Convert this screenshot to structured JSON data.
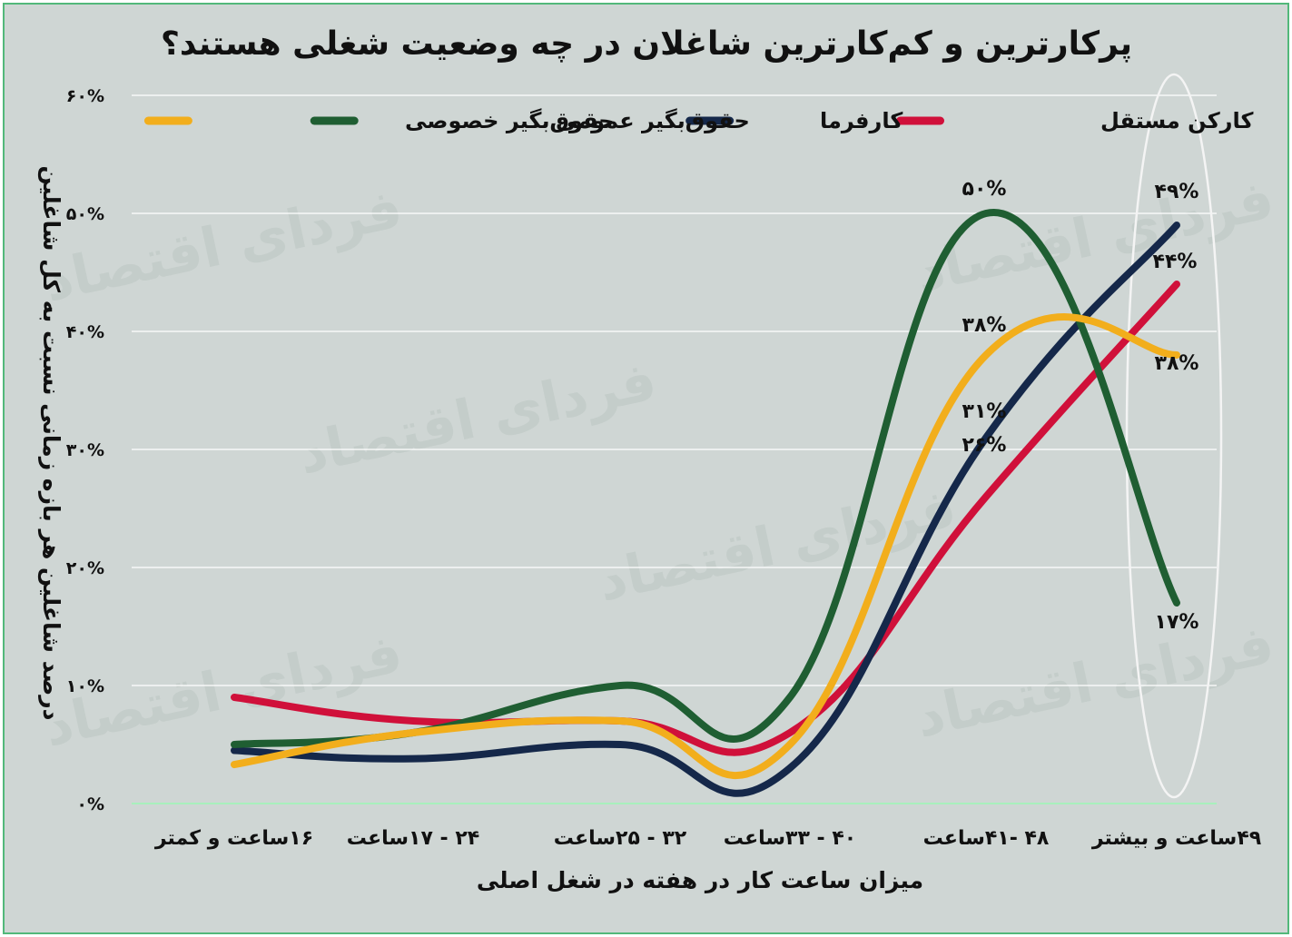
{
  "chart_data": {
    "type": "line",
    "title": "پرکارترین و کم‌کارترین شاغلان در چه وضعیت شغلی هستند؟",
    "xlabel": "میزان ساعت کار در هفته در شغل اصلی",
    "ylabel": "درصد شاغلین هر بازه زمانی نسبت به کل شاغلین",
    "categories": [
      "۱۶ساعت و کمتر",
      "۲۴ - ۱۷ساعت",
      "۳۲ - ۲۵ساعت",
      "۴۰ - ۳۳ساعت",
      "۴۸ -۴۱ساعت",
      "۴۹ساعت و بیشتر"
    ],
    "yticks": [
      "۰%",
      "۱۰%",
      "۲۰%",
      "۳۰%",
      "۴۰%",
      "۵۰%",
      "۶۰%"
    ],
    "ylim": [
      0,
      60
    ],
    "grid": true,
    "legend_position": "top",
    "watermark": "فردای اقتصاد",
    "series": [
      {
        "name": "کارکن مستقل",
        "color": "#d0103a",
        "values": [
          9,
          7,
          7,
          6,
          26,
          44
        ]
      },
      {
        "name": "کارفرما",
        "color": "#15284a",
        "values": [
          4.5,
          3.8,
          5,
          3,
          31,
          49
        ]
      },
      {
        "name": "حقوق‌بگیر عمومی",
        "color": "#1f5e32",
        "values": [
          5,
          6,
          10,
          9,
          50,
          17
        ]
      },
      {
        "name": "حقوق‌بگیر خصوصی",
        "color": "#f2ae1c",
        "values": [
          3.3,
          6,
          7,
          5,
          38,
          38
        ]
      }
    ],
    "data_labels": [
      {
        "text": "۵۰%",
        "category": 4,
        "value": 50,
        "series": 2
      },
      {
        "text": "۳۸%",
        "category": 4,
        "value": 38,
        "series": 3
      },
      {
        "text": "۳۱%",
        "category": 4,
        "value": 31,
        "series": 1
      },
      {
        "text": "۲۶%",
        "category": 4,
        "value": 26,
        "series": 0
      },
      {
        "text": "۴۹%",
        "category": 5,
        "value": 49,
        "series": 1
      },
      {
        "text": "۴۴%",
        "category": 5,
        "value": 44,
        "series": 0
      },
      {
        "text": "۳۸%",
        "category": 5,
        "value": 38,
        "series": 3
      },
      {
        "text": "۱۷%",
        "category": 5,
        "value": 17,
        "series": 2
      }
    ]
  }
}
